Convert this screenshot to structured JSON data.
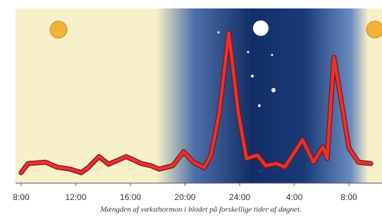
{
  "chart_data": {
    "type": "line",
    "caption": "Mængden af væksthormon i blodet på forskellige tider af døgnet.",
    "x": [
      0,
      0.5,
      1.8,
      2.6,
      3.6,
      4.4,
      4.9,
      5.7,
      6.4,
      7.7,
      8.8,
      9.5,
      10.1,
      11.1,
      11.9,
      12.6,
      13.4,
      13.9,
      14.5,
      15.2,
      15.9,
      16.5,
      17.3,
      17.9,
      18.7,
      19.3,
      20.6,
      21.4,
      22.1,
      22.4,
      22.9,
      23.5,
      24.0,
      24.7,
      25.6
    ],
    "series": [
      {
        "color": "#e8322e",
        "values": [
          15,
          28,
          30,
          23,
          20,
          15,
          22,
          38,
          27,
          38,
          28,
          25,
          20,
          25,
          45,
          30,
          22,
          40,
          100,
          215,
          100,
          35,
          40,
          25,
          28,
          23,
          62,
          30,
          52,
          35,
          180,
          110,
          50,
          30,
          28
        ]
      }
    ],
    "xlim": [
      0,
      25.8
    ],
    "ylim": [
      0,
      250
    ],
    "xticks": [
      {
        "value": 0,
        "label": "8:00"
      },
      {
        "value": 4,
        "label": "12:00"
      },
      {
        "value": 8,
        "label": "16:00"
      },
      {
        "value": 12,
        "label": "20:00"
      },
      {
        "value": 16,
        "label": "24:00"
      },
      {
        "value": 20,
        "label": "4:00"
      },
      {
        "value": 24,
        "label": "8:00"
      }
    ]
  }
}
